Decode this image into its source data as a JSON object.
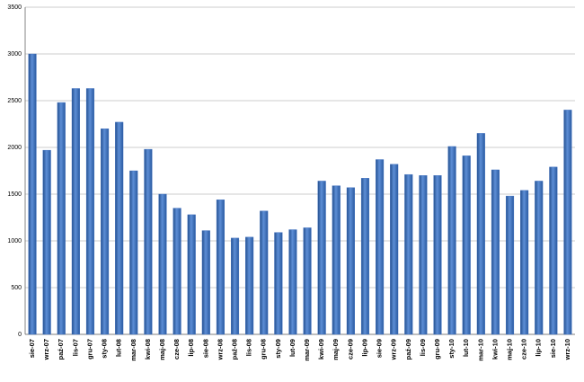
{
  "chart_data": {
    "type": "bar",
    "categories": [
      "sie-07",
      "wrz-07",
      "paź-07",
      "lis-07",
      "gru-07",
      "sty-08",
      "lut-08",
      "mar-08",
      "kwi-08",
      "maj-08",
      "cze-08",
      "lip-08",
      "sie-08",
      "wrz-08",
      "paź-08",
      "lis-08",
      "gru-08",
      "sty-09",
      "lut-09",
      "mar-09",
      "kwi-09",
      "maj-09",
      "cze-09",
      "lip-09",
      "sie-09",
      "wrz-09",
      "paź-09",
      "lis-09",
      "gru-09",
      "sty-10",
      "lut-10",
      "mar-10",
      "kwi-10",
      "maj-10",
      "cze-10",
      "lip-10",
      "sie-10",
      "wrz-10"
    ],
    "values": [
      3000,
      1970,
      2480,
      2630,
      2630,
      2200,
      2270,
      1750,
      1980,
      1500,
      1350,
      1280,
      1110,
      1440,
      1030,
      1040,
      1320,
      1090,
      1120,
      1140,
      1640,
      1590,
      1570,
      1670,
      1870,
      1820,
      1710,
      1700,
      1700,
      2010,
      1910,
      2150,
      1760,
      1480,
      1540,
      1640,
      1790,
      2400
    ],
    "color": "#3c6ec0",
    "ylim": [
      0,
      3500
    ],
    "yticks": [
      0,
      500,
      1000,
      1500,
      2000,
      2500,
      3000,
      3500
    ],
    "grid": true
  }
}
